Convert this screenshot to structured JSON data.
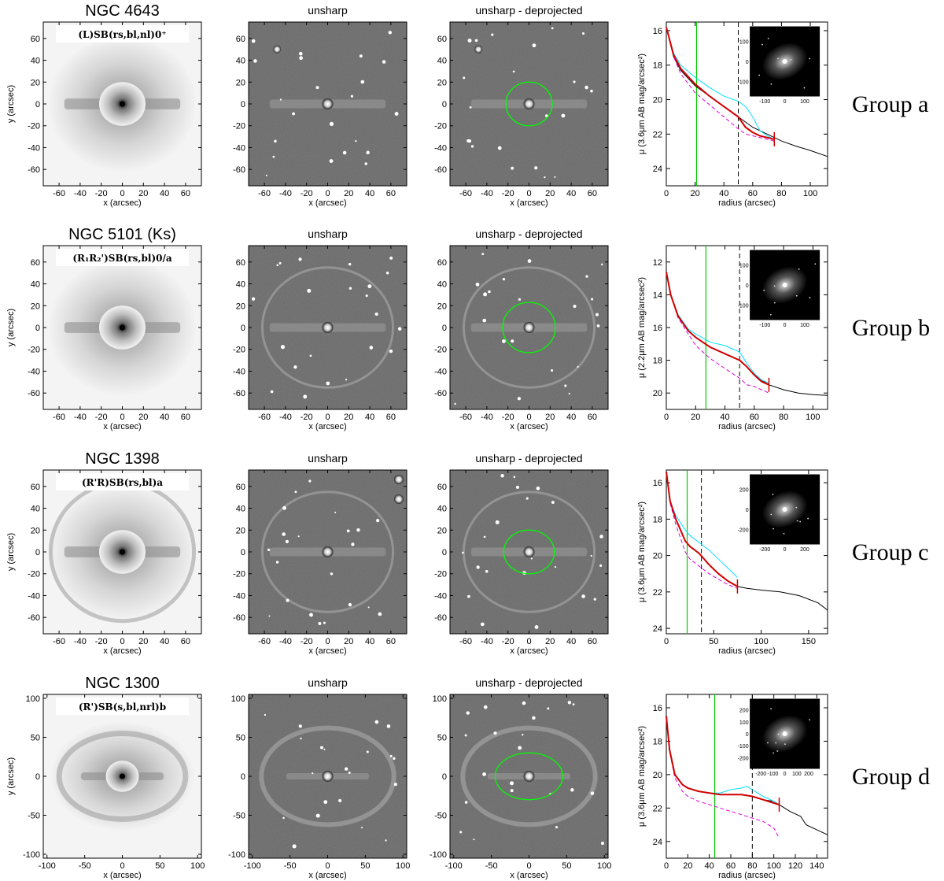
{
  "figure": {
    "col_titles": {
      "unsharp": "unsharp",
      "deprojected": "unsharp - deprojected"
    },
    "axis_labels": {
      "x": "x (arcsec)",
      "y": "y (arcsec)",
      "radius": "radius (arcsec)"
    },
    "colors": {
      "measured": "#000000",
      "deprojected": "#d00000",
      "major_axis": "#00e0ff",
      "minor_axis": "#e000e0",
      "bar_length": "#00cc00",
      "ellipse": "#00ff00"
    }
  },
  "chart_data": [
    {
      "type": "figure-row",
      "group": "Group a",
      "galaxy": "NGC 4643",
      "band": "",
      "classification": "(L)SB(rs,bl,nl)0⁺",
      "image_ticks": [
        "-60",
        "-40",
        "-20",
        "0",
        "20",
        "40",
        "60"
      ],
      "image_range": [
        -75,
        75
      ],
      "ellipse_semiaxes": [
        22,
        20
      ],
      "profile": {
        "ylabel": "μ (3.6μm AB mag/arcsec²)",
        "ylim": [
          25,
          15.5
        ],
        "xlim": [
          0,
          112
        ],
        "yticks": [
          "16",
          "18",
          "20",
          "22",
          "24"
        ],
        "xticks": [
          "0",
          "20",
          "40",
          "60",
          "80",
          "100"
        ],
        "vline_green": 21,
        "vline_dashed": 50,
        "inset_ticks": [
          "-100",
          "0",
          "100"
        ],
        "series": [
          {
            "name": "measured",
            "x": [
              0,
              5,
              10,
              20,
              30,
              40,
              50,
              60,
              70,
              80,
              90,
              100,
              112
            ],
            "y": [
              15.8,
              17.5,
              18.3,
              19.2,
              19.8,
              20.4,
              21.0,
              21.6,
              22.0,
              22.4,
              22.7,
              22.95,
              23.3
            ]
          },
          {
            "name": "major",
            "x": [
              0,
              5,
              10,
              20,
              30,
              40,
              50,
              55,
              60,
              65,
              70,
              75
            ],
            "y": [
              15.8,
              17.3,
              18.0,
              18.7,
              19.3,
              19.8,
              20.1,
              20.4,
              21.0,
              21.8,
              22.1,
              22.3
            ]
          },
          {
            "name": "minor",
            "x": [
              0,
              5,
              10,
              20,
              30,
              40,
              50,
              55,
              60,
              65,
              70,
              75
            ],
            "y": [
              15.8,
              17.5,
              18.5,
              19.6,
              20.3,
              21.0,
              21.7,
              22.0,
              22.1,
              22.2,
              22.3,
              22.4
            ]
          },
          {
            "name": "deprojected",
            "x": [
              0,
              5,
              10,
              20,
              30,
              40,
              50,
              55,
              60,
              65,
              70,
              75
            ],
            "y": [
              15.8,
              17.4,
              18.2,
              19.1,
              19.8,
              20.4,
              21.0,
              21.6,
              21.9,
              22.1,
              22.2,
              22.3
            ]
          }
        ]
      }
    },
    {
      "type": "figure-row",
      "group": "Group b",
      "galaxy": "NGC 5101",
      "band": "(Ks)",
      "classification": "(R₁R₂')SB(rs,bl)0/a",
      "image_ticks": [
        "-60",
        "-40",
        "-20",
        "0",
        "20",
        "40",
        "60"
      ],
      "image_range": [
        -75,
        75
      ],
      "ellipse_semiaxes": [
        25,
        23
      ],
      "profile": {
        "ylabel": "μ (2.2μm AB mag/arcsec²)",
        "ylim": [
          21,
          11
        ],
        "xlim": [
          0,
          110
        ],
        "yticks": [
          "12",
          "14",
          "16",
          "18",
          "20"
        ],
        "xticks": [
          "0",
          "20",
          "40",
          "60",
          "80",
          "100"
        ],
        "vline_green": 27,
        "vline_dashed": 50,
        "inset_ticks": [
          "-100",
          "0",
          "100"
        ],
        "series": [
          {
            "name": "measured",
            "x": [
              0,
              3,
              8,
              15,
              20,
              30,
              40,
              50,
              55,
              60,
              70,
              80,
              90,
              100,
              110
            ],
            "y": [
              12.6,
              14.0,
              15.3,
              16.2,
              16.6,
              17.2,
              17.6,
              18.0,
              18.4,
              18.9,
              19.5,
              19.8,
              20.0,
              20.1,
              20.15
            ]
          },
          {
            "name": "major",
            "x": [
              0,
              3,
              8,
              15,
              20,
              30,
              40,
              50,
              55,
              60,
              65,
              70
            ],
            "y": [
              12.6,
              14.0,
              15.2,
              16.1,
              16.4,
              16.9,
              17.1,
              17.5,
              18.2,
              18.8,
              19.2,
              19.4
            ]
          },
          {
            "name": "minor",
            "x": [
              0,
              3,
              8,
              15,
              20,
              30,
              40,
              50,
              55,
              60,
              65,
              70
            ],
            "y": [
              12.6,
              14.0,
              15.4,
              16.4,
              17.1,
              17.9,
              18.5,
              19.1,
              19.5,
              19.6,
              19.8,
              20.0
            ]
          },
          {
            "name": "deprojected",
            "x": [
              0,
              3,
              8,
              15,
              20,
              30,
              40,
              50,
              55,
              60,
              65,
              70
            ],
            "y": [
              12.6,
              14.0,
              15.3,
              16.2,
              16.6,
              17.2,
              17.6,
              18.0,
              18.4,
              18.9,
              19.3,
              19.5
            ]
          }
        ]
      }
    },
    {
      "type": "figure-row",
      "group": "Group c",
      "galaxy": "NGC 1398",
      "band": "",
      "classification": "(R'R)SB(rs,bl)a",
      "image_ticks": [
        "-60",
        "-40",
        "-20",
        "0",
        "20",
        "40",
        "60"
      ],
      "image_range": [
        -75,
        75
      ],
      "ellipse_semiaxes": [
        24,
        20
      ],
      "profile": {
        "ylabel": "μ (3.6μm AB mag/arcsec²)",
        "ylim": [
          24.3,
          15.3
        ],
        "xlim": [
          0,
          170
        ],
        "yticks": [
          "16",
          "18",
          "20",
          "22",
          "24"
        ],
        "xticks": [
          "0",
          "50",
          "100",
          "150"
        ],
        "vline_green": 22,
        "vline_dashed": 37,
        "inset_ticks": [
          "-200",
          "0",
          "200"
        ],
        "series": [
          {
            "name": "measured",
            "x": [
              0,
              4,
              10,
              20,
              25,
              30,
              35,
              45,
              55,
              65,
              75,
              85,
              100,
              120,
              140,
              160,
              170
            ],
            "y": [
              15.4,
              17.0,
              18.0,
              19.2,
              19.5,
              19.7,
              19.9,
              20.5,
              21.0,
              21.4,
              21.7,
              21.8,
              21.9,
              22.0,
              22.2,
              22.6,
              23.0
            ]
          },
          {
            "name": "major",
            "x": [
              0,
              4,
              10,
              20,
              25,
              30,
              35,
              45,
              55,
              65,
              75
            ],
            "y": [
              15.4,
              17.0,
              17.8,
              18.6,
              18.9,
              19.1,
              19.3,
              19.7,
              20.2,
              20.7,
              21.2
            ]
          },
          {
            "name": "minor",
            "x": [
              0,
              4,
              10,
              20,
              25,
              30,
              35,
              45,
              55,
              65,
              75
            ],
            "y": [
              15.4,
              17.1,
              18.3,
              19.8,
              20.2,
              20.4,
              20.6,
              21.0,
              21.3,
              21.6,
              21.8
            ]
          },
          {
            "name": "deprojected",
            "x": [
              0,
              4,
              10,
              20,
              25,
              30,
              35,
              45,
              55,
              65,
              75
            ],
            "y": [
              15.4,
              17.0,
              18.0,
              19.2,
              19.5,
              19.7,
              19.9,
              20.5,
              21.0,
              21.4,
              21.7
            ]
          }
        ]
      }
    },
    {
      "type": "figure-row",
      "group": "Group d",
      "galaxy": "NGC 1300",
      "band": "",
      "classification": "(R')SB(s,bl,nrl)b",
      "image_ticks": [
        "-100",
        "-50",
        "0",
        "50",
        "100"
      ],
      "image_range": [
        -105,
        105
      ],
      "ellipse_semiaxes": [
        45,
        30
      ],
      "profile": {
        "ylabel": "μ (3.6μm AB mag/arcsec²)",
        "ylim": [
          25,
          15.2
        ],
        "xlim": [
          0,
          150
        ],
        "yticks": [
          "16",
          "18",
          "20",
          "22",
          "24"
        ],
        "xticks": [
          "0",
          "20",
          "40",
          "60",
          "80",
          "100",
          "120",
          "140"
        ],
        "vline_green": 45,
        "vline_dashed": 80,
        "inset_ticks": [
          "-200",
          "-100",
          "0",
          "100",
          "200"
        ],
        "series": [
          {
            "name": "measured",
            "x": [
              0,
              3,
              8,
              15,
              20,
              30,
              40,
              50,
              60,
              70,
              80,
              90,
              100,
              105,
              115,
              125,
              130,
              140,
              150
            ],
            "y": [
              16.5,
              18.5,
              20.0,
              20.6,
              20.8,
              21.0,
              21.1,
              21.2,
              21.2,
              21.2,
              21.3,
              21.5,
              21.6,
              21.8,
              22.2,
              22.5,
              23.0,
              23.3,
              23.6
            ]
          },
          {
            "name": "major",
            "x": [
              0,
              3,
              8,
              15,
              20,
              30,
              40,
              50,
              60,
              70,
              75,
              80,
              85,
              90,
              100,
              105
            ],
            "y": [
              16.5,
              18.5,
              20.0,
              20.6,
              20.8,
              21.0,
              21.1,
              21.1,
              20.9,
              20.8,
              20.7,
              20.9,
              21.1,
              21.3,
              21.6,
              21.8
            ]
          },
          {
            "name": "minor",
            "x": [
              0,
              3,
              8,
              15,
              20,
              30,
              40,
              50,
              60,
              70,
              80,
              90,
              100,
              105
            ],
            "y": [
              16.5,
              18.6,
              20.2,
              21.0,
              21.3,
              21.6,
              21.8,
              22.0,
              22.2,
              22.4,
              22.6,
              22.8,
              23.2,
              23.8
            ]
          },
          {
            "name": "deprojected",
            "x": [
              0,
              3,
              8,
              15,
              20,
              30,
              40,
              50,
              60,
              70,
              80,
              90,
              100,
              105
            ],
            "y": [
              16.5,
              18.5,
              20.0,
              20.6,
              20.8,
              21.0,
              21.1,
              21.2,
              21.2,
              21.2,
              21.3,
              21.5,
              21.7,
              21.8
            ]
          }
        ]
      }
    }
  ]
}
